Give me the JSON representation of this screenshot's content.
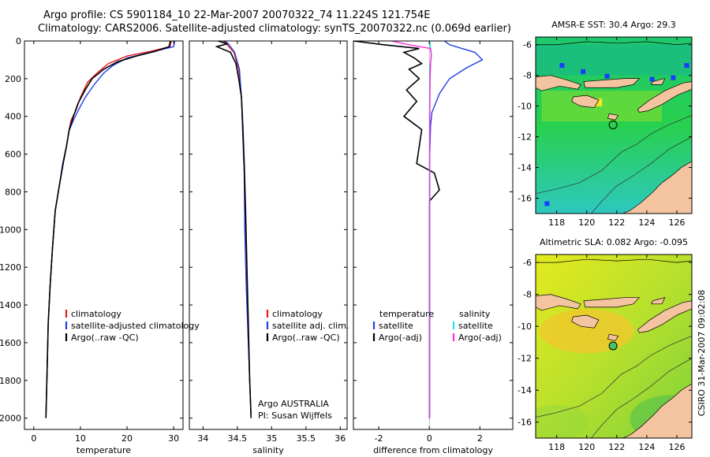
{
  "header": {
    "line1": "Argo profile: CS 5901184_10 22-Mar-2007 20070322_74 11.224S 121.754E",
    "line2": "Climatology: CARS2006. Satellite-adjusted climatology: synTS_20070322.nc (0.069d earlier)"
  },
  "colors": {
    "red": "#e41a1c",
    "blue": "#1f3fe6",
    "black": "#000000",
    "cyan": "#22e0f0",
    "magenta": "#ff2cd6",
    "land": "#f4c4a0"
  },
  "chart_data": [
    {
      "type": "line",
      "xlabel": "temperature",
      "xlim": [
        -2,
        32
      ],
      "ylim": [
        2060,
        0
      ],
      "xticks": [
        0,
        10,
        20,
        30
      ],
      "yticks": [
        0,
        200,
        400,
        600,
        800,
        1000,
        1200,
        1400,
        1600,
        1800,
        2000
      ],
      "legend": [
        "climatology",
        "satellite-adjusted climatology",
        "Argo(..raw -QC)"
      ],
      "series": [
        {
          "name": "climatology",
          "color": "red",
          "x": [
            29.5,
            29.2,
            25,
            20,
            16,
            14,
            11.5,
            10,
            9,
            8,
            7.5,
            7,
            6.2,
            5.6,
            4.6,
            4,
            3.5,
            3.1,
            2.9,
            2.6
          ],
          "y": [
            0,
            30,
            55,
            80,
            120,
            160,
            220,
            300,
            370,
            420,
            480,
            560,
            650,
            750,
            900,
            1100,
            1300,
            1500,
            1700,
            2000
          ]
        },
        {
          "name": "satellite-adjusted climatology",
          "color": "blue",
          "x": [
            30.2,
            30,
            25,
            20,
            17,
            15,
            13,
            11,
            9.5,
            8.5,
            7.5,
            7,
            6.2,
            5.6,
            4.6,
            4,
            3.5,
            3.1,
            2.9,
            2.6
          ],
          "y": [
            0,
            30,
            60,
            90,
            130,
            170,
            230,
            300,
            370,
            420,
            480,
            560,
            650,
            750,
            900,
            1100,
            1300,
            1500,
            1700,
            2000
          ]
        },
        {
          "name": "Argo(..raw -QC)",
          "color": "black",
          "x": [
            29.3,
            29,
            26,
            22,
            18,
            15,
            12.5,
            11,
            9.5,
            8.5,
            7.6,
            7,
            6.3,
            5.6,
            4.6,
            4,
            3.5,
            3.1,
            2.9,
            2.6
          ],
          "y": [
            0,
            30,
            55,
            80,
            110,
            150,
            200,
            260,
            330,
            400,
            470,
            560,
            650,
            750,
            900,
            1100,
            1300,
            1500,
            1700,
            2000
          ]
        }
      ]
    },
    {
      "type": "line",
      "xlabel": "salinity",
      "xlim": [
        33.8,
        36.1
      ],
      "ylim": [
        2060,
        0
      ],
      "xticks": [
        34,
        34.5,
        35,
        35.5,
        36
      ],
      "legend": [
        "climatology",
        "satellite adj. clim.",
        "Argo(..raw -QC)"
      ],
      "annotations": [
        "Argo AUSTRALIA",
        "PI: Susan Wijffels"
      ],
      "series": [
        {
          "name": "climatology",
          "color": "red",
          "x": [
            34.3,
            34.35,
            34.45,
            34.52,
            34.56,
            34.58,
            34.6,
            34.61,
            34.63,
            34.66,
            34.68,
            34.7
          ],
          "y": [
            0,
            20,
            60,
            150,
            300,
            500,
            700,
            1000,
            1300,
            1600,
            1800,
            2000
          ]
        },
        {
          "name": "satellite adj. clim.",
          "color": "blue",
          "x": [
            34.32,
            34.38,
            34.46,
            34.53,
            34.56,
            34.58,
            34.6,
            34.61,
            34.63,
            34.66,
            34.68,
            34.7
          ],
          "y": [
            0,
            20,
            60,
            150,
            300,
            500,
            700,
            1000,
            1300,
            1600,
            1800,
            2000
          ]
        },
        {
          "name": "Argo(..raw -QC)",
          "color": "black",
          "x": [
            34.22,
            34.35,
            34.2,
            34.4,
            34.48,
            34.52,
            34.56,
            34.58,
            34.6,
            34.62,
            34.64,
            34.66,
            34.68,
            34.7
          ],
          "y": [
            0,
            15,
            30,
            60,
            120,
            200,
            300,
            450,
            650,
            900,
            1200,
            1500,
            1800,
            2000
          ]
        }
      ]
    },
    {
      "type": "line",
      "xlabel": "difference from climatology",
      "xlim": [
        -3,
        3.3
      ],
      "ylim": [
        2060,
        0
      ],
      "xticks": [
        -2,
        0,
        2
      ],
      "legend": [
        "temperature",
        "satellite",
        "Argo(-adj)",
        "salinity",
        "satellite",
        "Argo(-adj)"
      ],
      "series": [
        {
          "name": "satellite",
          "color": "blue",
          "x": [
            0.6,
            0.8,
            1.8,
            2.1,
            1.5,
            0.8,
            0.6,
            0.4,
            0.25,
            0.1,
            0.05,
            0.02,
            0,
            0,
            0
          ],
          "y": [
            0,
            20,
            60,
            100,
            140,
            200,
            240,
            280,
            330,
            380,
            450,
            600,
            900,
            1400,
            2000
          ]
        },
        {
          "name": "Argo(-adj)",
          "color": "black",
          "x": [
            -3,
            -1.8,
            -0.4,
            -1.0,
            -0.6,
            -0.3,
            -0.8,
            -0.4,
            -0.9,
            -0.5,
            -1.0,
            -0.3,
            -0.5,
            0.2,
            0.4,
            0,
            0,
            0
          ],
          "y": [
            0,
            20,
            40,
            60,
            90,
            120,
            150,
            200,
            260,
            320,
            400,
            470,
            650,
            700,
            790,
            850,
            1300,
            2000
          ]
        },
        {
          "name": "satellite",
          "color": "cyan",
          "x": [
            0.02,
            0.05,
            0.08,
            0.03,
            0.02,
            0.01,
            0,
            0
          ],
          "y": [
            0,
            40,
            80,
            130,
            200,
            400,
            800,
            2000
          ]
        },
        {
          "name": "Argo(-adj)",
          "color": "magenta",
          "x": [
            -1.5,
            -0.8,
            0.05,
            0.08,
            0.05,
            0.03,
            0.02,
            0.02,
            0.02
          ],
          "y": [
            0,
            20,
            40,
            70,
            120,
            200,
            400,
            900,
            2000
          ]
        }
      ]
    },
    {
      "type": "heatmap",
      "title": "AMSR-E SST: 30.4 Argo: 29.3",
      "xlim": [
        116.6,
        127
      ],
      "ylim": [
        -17,
        -5.5
      ],
      "xticks": [
        118,
        120,
        122,
        124,
        126
      ],
      "yticks": [
        -6,
        -8,
        -10,
        -12,
        -14,
        -16
      ],
      "marker": {
        "lon": 121.754,
        "lat": -11.224
      }
    },
    {
      "type": "heatmap",
      "title": "Altimetric SLA: 0.082 Argo: -0.095",
      "xlim": [
        116.6,
        127
      ],
      "ylim": [
        -17,
        -5.5
      ],
      "xticks": [
        118,
        120,
        122,
        124,
        126
      ],
      "yticks": [
        -6,
        -8,
        -10,
        -12,
        -14,
        -16
      ],
      "marker": {
        "lon": 121.754,
        "lat": -11.224
      }
    }
  ],
  "stamp": "CSIRO 31-Mar-2007 09:02:08"
}
